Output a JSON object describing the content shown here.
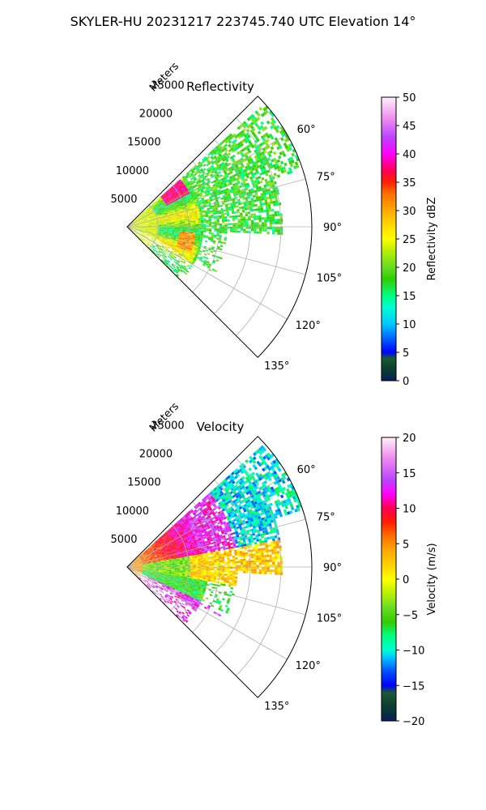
{
  "figure": {
    "title": "SKYLER-HU  20231217  223745.740 UTC Elevation 14°"
  },
  "chart_data": [
    {
      "type": "heatmap",
      "projection": "polar-sector",
      "title": "Reflectivity",
      "range_axis_label": "Meters",
      "range_ticks": [
        5000,
        10000,
        15000,
        20000,
        25000
      ],
      "range_tick_labels": [
        "5000",
        "10000",
        "15000",
        "20000",
        "25000"
      ],
      "range_max": 30000,
      "theta_range_deg": [
        45,
        135
      ],
      "theta_ticks_deg": [
        60,
        75,
        90,
        105,
        120,
        135
      ],
      "theta_tick_labels": [
        "60°",
        "75°",
        "90°",
        "105°",
        "120°",
        "135°"
      ],
      "grid": true,
      "colorbar": {
        "label": "Reflectivity dBZ",
        "min": 0,
        "max": 50,
        "ticks": [
          0,
          5,
          10,
          15,
          20,
          25,
          30,
          35,
          40,
          45,
          50
        ],
        "tick_labels": [
          "0",
          "5",
          "10",
          "15",
          "20",
          "25",
          "30",
          "35",
          "40",
          "45",
          "50"
        ],
        "stops": [
          [
            0,
            "#0a1f5c"
          ],
          [
            2,
            "#0b3d2b"
          ],
          [
            4,
            "#1a5a3a"
          ],
          [
            5,
            "#0000ff"
          ],
          [
            7,
            "#0050ff"
          ],
          [
            10,
            "#00c8ff"
          ],
          [
            13,
            "#00ffd0"
          ],
          [
            15,
            "#00ff80"
          ],
          [
            18,
            "#33cc00"
          ],
          [
            20,
            "#66dd22"
          ],
          [
            23,
            "#bbf000"
          ],
          [
            25,
            "#ffff00"
          ],
          [
            28,
            "#ffd000"
          ],
          [
            30,
            "#ffaa00"
          ],
          [
            33,
            "#ff7000"
          ],
          [
            35,
            "#ff2000"
          ],
          [
            37,
            "#ff0050"
          ],
          [
            40,
            "#ff00ff"
          ],
          [
            43,
            "#bb44ff"
          ],
          [
            46,
            "#ee88ee"
          ],
          [
            50,
            "#fff0fa"
          ]
        ]
      }
    },
    {
      "type": "heatmap",
      "projection": "polar-sector",
      "title": "Velocity",
      "range_axis_label": "Meters",
      "range_ticks": [
        5000,
        10000,
        15000,
        20000,
        25000
      ],
      "range_tick_labels": [
        "5000",
        "10000",
        "15000",
        "20000",
        "25000"
      ],
      "range_max": 30000,
      "theta_range_deg": [
        45,
        135
      ],
      "theta_ticks_deg": [
        60,
        75,
        90,
        105,
        120,
        135
      ],
      "theta_tick_labels": [
        "60°",
        "75°",
        "90°",
        "105°",
        "120°",
        "135°"
      ],
      "grid": true,
      "colorbar": {
        "label": "Velocity (m/s)",
        "min": -20,
        "max": 20,
        "ticks": [
          -20,
          -15,
          -10,
          -5,
          0,
          5,
          10,
          15,
          20
        ],
        "tick_labels": [
          "−20",
          "−15",
          "−10",
          "−5",
          "0",
          "5",
          "10",
          "15",
          "20"
        ],
        "stops": [
          [
            -20,
            "#0a1f5c"
          ],
          [
            -18,
            "#0b3d2b"
          ],
          [
            -16,
            "#1a5a3a"
          ],
          [
            -15,
            "#0000ff"
          ],
          [
            -13,
            "#0050ff"
          ],
          [
            -11,
            "#00c8ff"
          ],
          [
            -10,
            "#00ffd0"
          ],
          [
            -8,
            "#00ff80"
          ],
          [
            -6,
            "#33cc00"
          ],
          [
            -4,
            "#66dd22"
          ],
          [
            -2,
            "#bbf000"
          ],
          [
            0,
            "#ffff00"
          ],
          [
            2,
            "#ffd000"
          ],
          [
            4,
            "#ffaa00"
          ],
          [
            6,
            "#ff7000"
          ],
          [
            8,
            "#ff2000"
          ],
          [
            10,
            "#ff0050"
          ],
          [
            12,
            "#ff00ff"
          ],
          [
            14,
            "#bb44ff"
          ],
          [
            17,
            "#ee88ee"
          ],
          [
            20,
            "#fff0fa"
          ]
        ]
      }
    }
  ]
}
